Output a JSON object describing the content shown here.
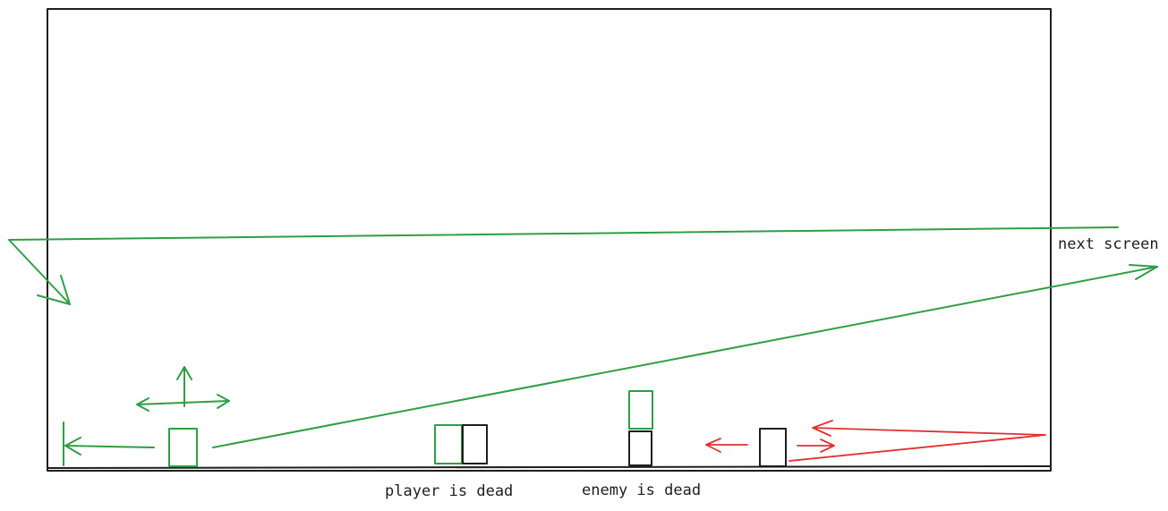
{
  "labels": {
    "next_screen": "next screen",
    "player_dead": "player is dead",
    "enemy_dead": "enemy is dead"
  },
  "colors": {
    "player": "#2f9e44",
    "enemy": "#1e1e1e",
    "enemy_motion": "#e03131",
    "frame": "#1e1e1e"
  }
}
